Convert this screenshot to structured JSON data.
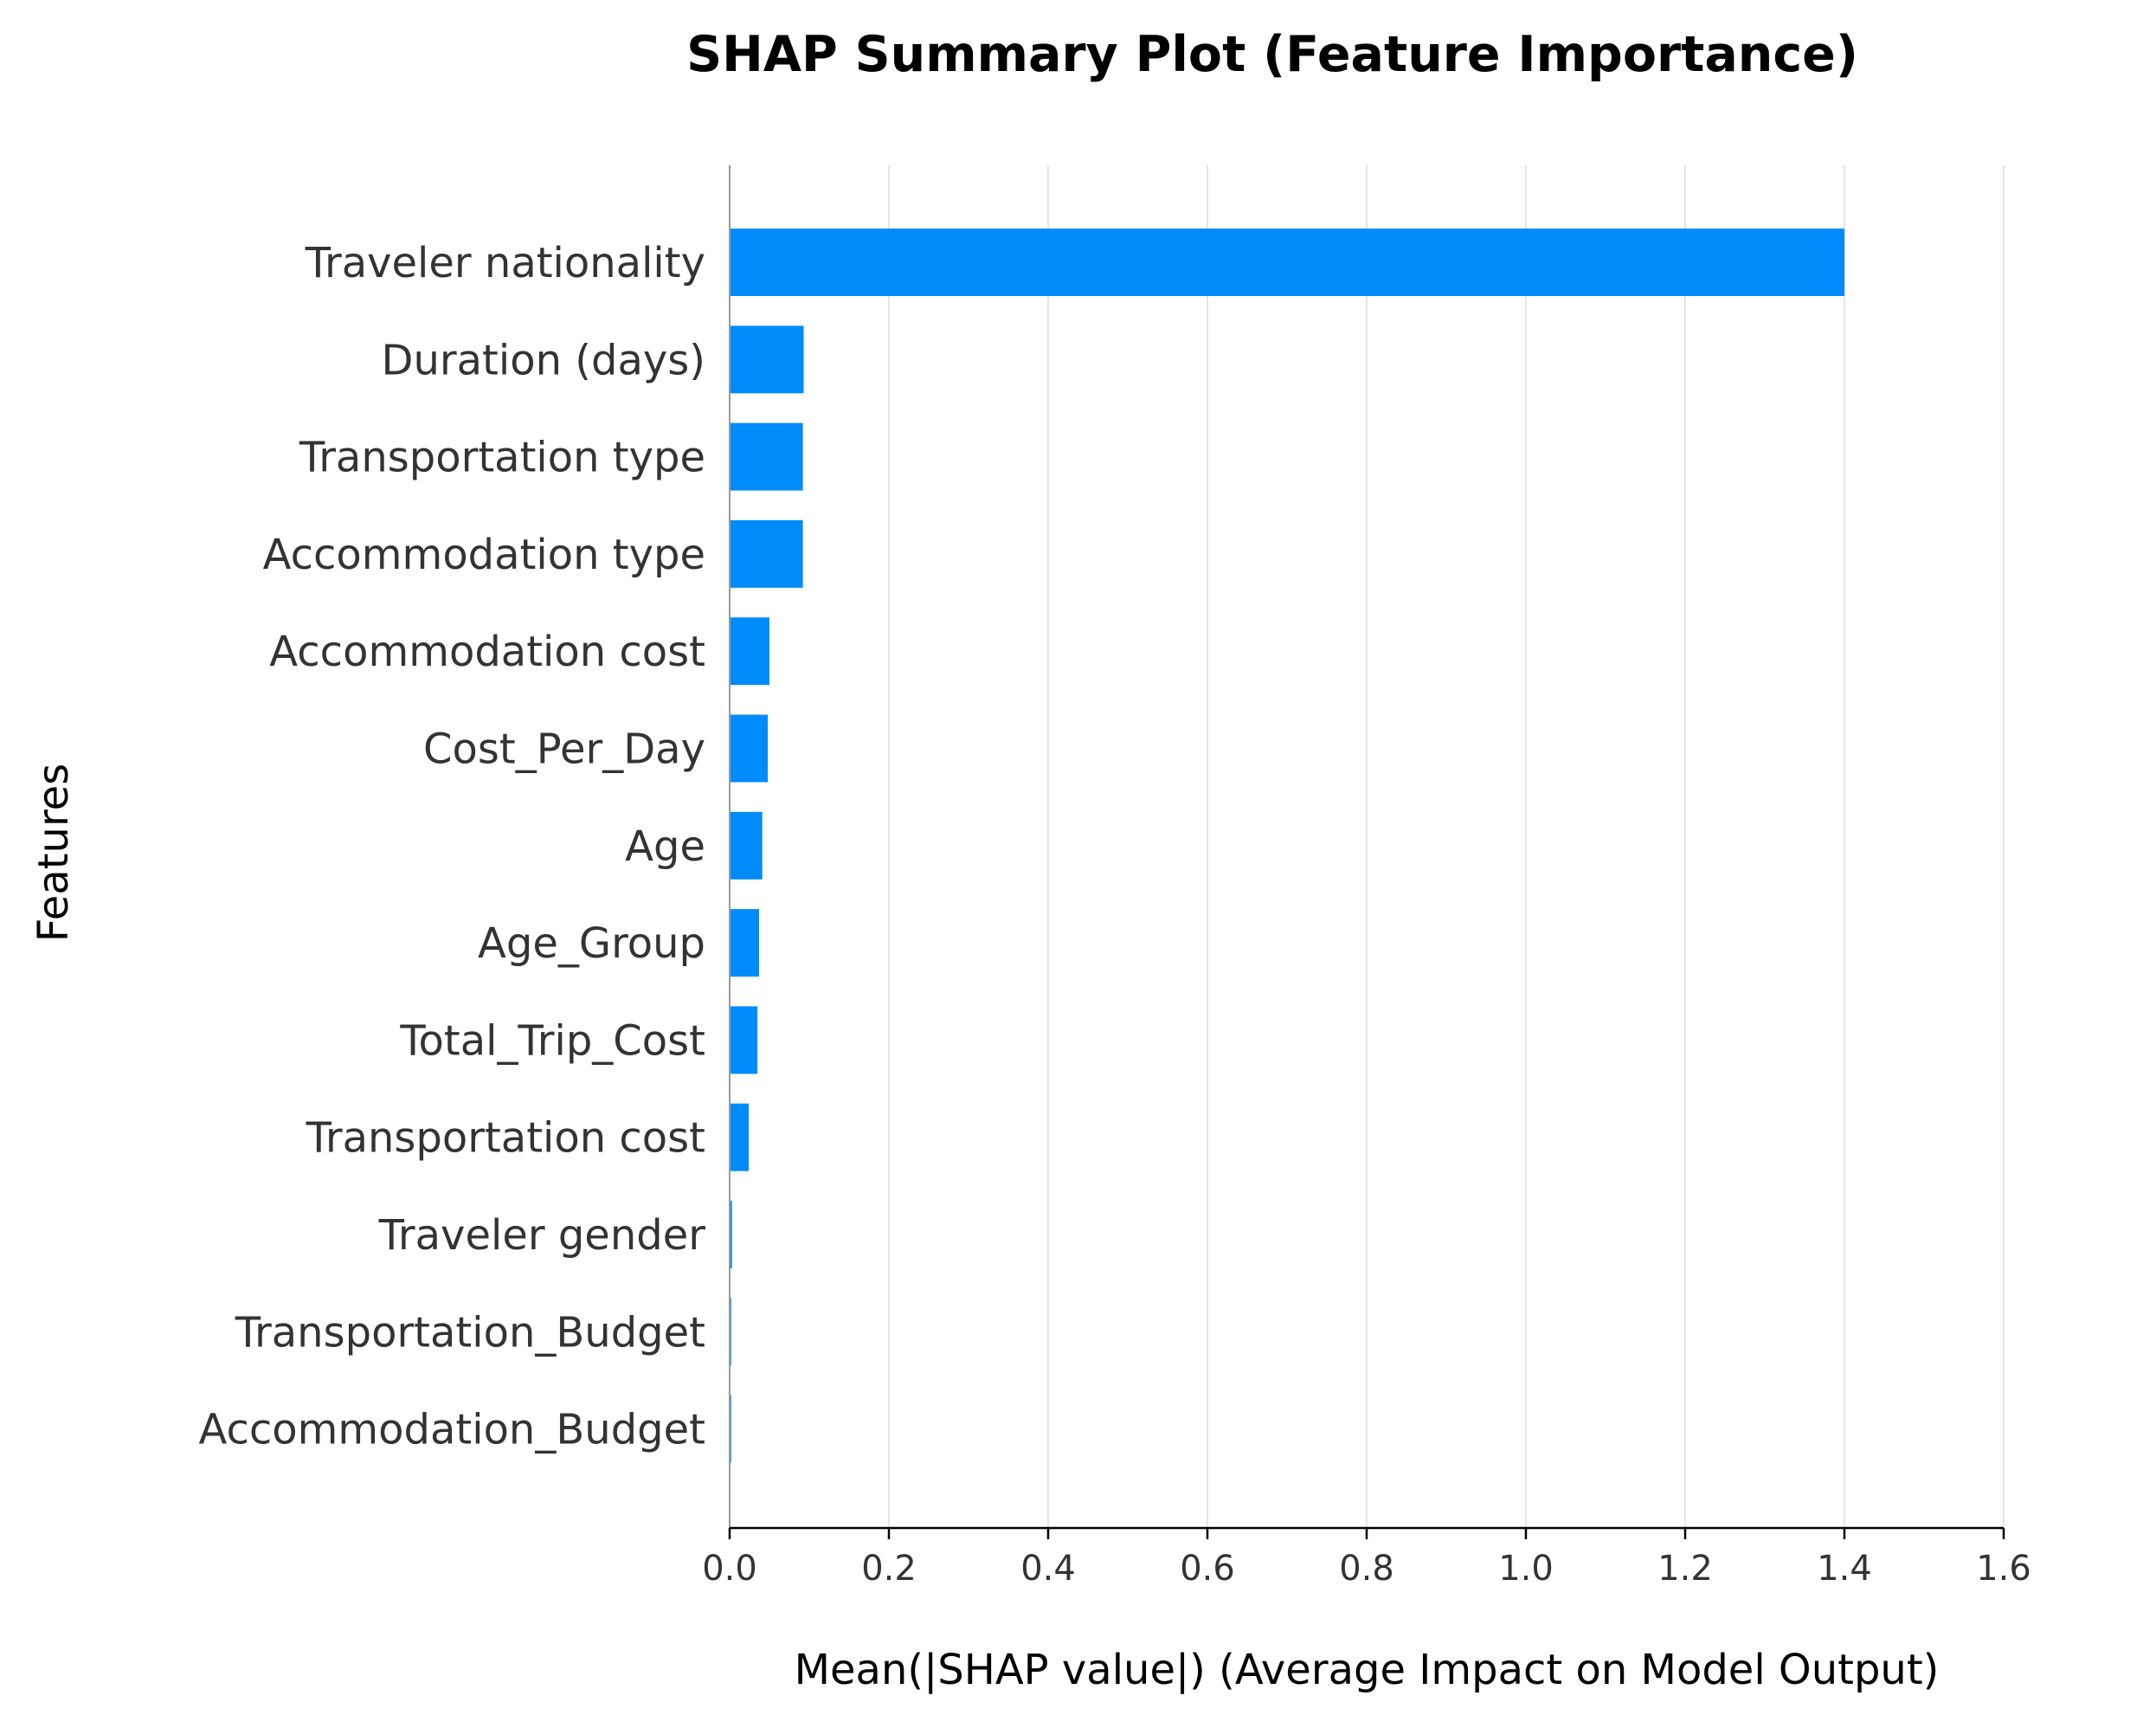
{
  "chart_data": {
    "type": "bar",
    "orientation": "horizontal",
    "title": "SHAP Summary Plot (Feature Importance)",
    "xlabel": "Mean(|SHAP value|) (Average Impact on Model Output)",
    "ylabel": "Features",
    "categories": [
      "Traveler nationality",
      "Duration (days)",
      "Transportation type",
      "Accommodation type",
      "Accommodation cost",
      "Cost_Per_Day",
      "Age",
      "Age_Group",
      "Total_Trip_Cost",
      "Transportation cost",
      "Traveler gender",
      "Transportation_Budget",
      "Accommodation_Budget"
    ],
    "values": [
      1.4,
      0.093,
      0.092,
      0.092,
      0.05,
      0.048,
      0.041,
      0.037,
      0.035,
      0.024,
      0.003,
      0.002,
      0.002
    ],
    "xlim": [
      0.0,
      1.6
    ],
    "xticks": [
      "0.0",
      "0.2",
      "0.4",
      "0.6",
      "0.8",
      "1.0",
      "1.2",
      "1.4",
      "1.6"
    ],
    "bar_color": "#008bfb",
    "grid": "x",
    "legend": "none"
  }
}
